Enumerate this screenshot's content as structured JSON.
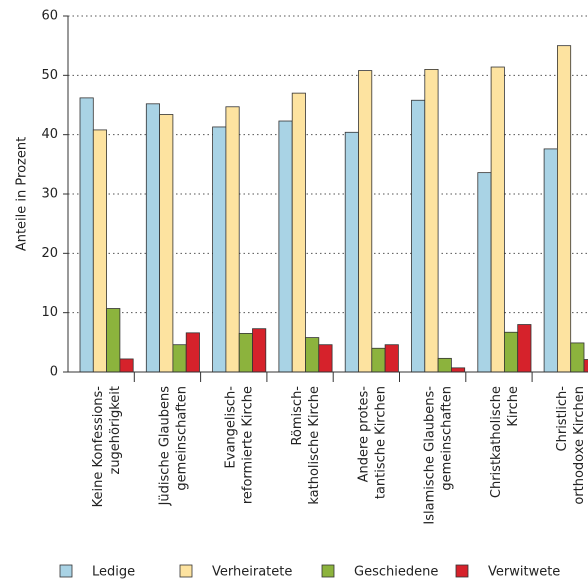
{
  "chart_data": {
    "type": "bar",
    "y_label": "Anteile in Prozent",
    "categories": [
      [
        "Keine Konfessions-",
        "zugehörigkeit"
      ],
      [
        "Jüdische Glaubens",
        "gemeinschaften"
      ],
      [
        "Evangelisch-",
        "reformierte Kirche"
      ],
      [
        "Römisch-",
        "katholische Kirche"
      ],
      [
        "Andere protes-",
        "tantische Kirchen"
      ],
      [
        "Islamische Glaubens-",
        "gemeinschaften"
      ],
      [
        "Christkatholische",
        "Kirche"
      ],
      [
        "Christlich-",
        "orthodoxe Kirchen"
      ]
    ],
    "series": [
      {
        "name": "Ledige",
        "color": "#a9d3e5",
        "values": [
          46.2,
          45.2,
          41.3,
          42.3,
          40.4,
          45.8,
          33.6,
          37.6
        ]
      },
      {
        "name": "Verheiratete",
        "color": "#fde3a0",
        "values": [
          40.8,
          43.4,
          44.7,
          47.0,
          50.8,
          51.0,
          51.4,
          55.0
        ]
      },
      {
        "name": "Geschiedene",
        "color": "#8cb33d",
        "values": [
          10.7,
          4.6,
          6.5,
          5.8,
          4.0,
          2.3,
          6.7,
          4.9
        ]
      },
      {
        "name": "Verwitwete",
        "color": "#d6222b",
        "values": [
          2.2,
          6.6,
          7.3,
          4.6,
          4.6,
          0.7,
          8.0,
          2.1
        ]
      }
    ],
    "ylim": [
      0,
      60
    ],
    "yticks": [
      0,
      10,
      20,
      30,
      40,
      50,
      60
    ],
    "grid": true
  }
}
